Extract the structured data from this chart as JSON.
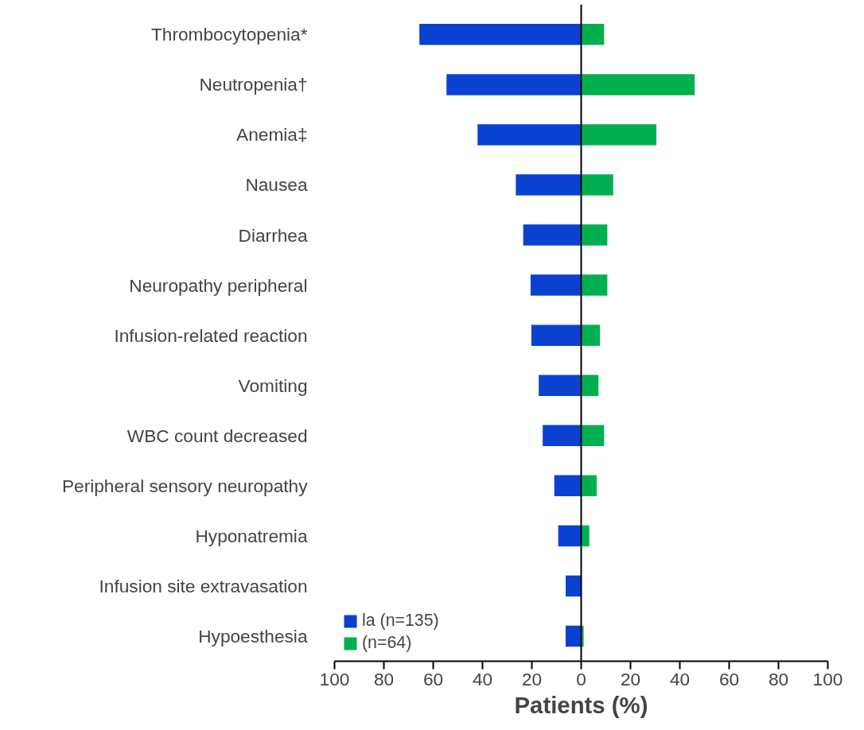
{
  "chart_data": {
    "type": "bar",
    "orientation": "horizontal",
    "xlabel": "Patients (%)",
    "categories": [
      "Thrombocytopenia*",
      "Neutropenia†",
      "Anemia‡",
      "Nausea",
      "Diarrhea",
      "Neuropathy peripheral",
      "Infusion-related reaction",
      "Vomiting",
      "WBC count decreased",
      "Peripheral sensory neuropathy",
      "Hyponatremia",
      "Infusion site extravasation",
      "Hypoesthesia"
    ],
    "series": [
      {
        "name": "la (n=135)",
        "color": "#0a41d1",
        "values": [
          -65.6,
          -54.6,
          -42,
          -26.5,
          -23.5,
          -20.5,
          -20.2,
          -17.2,
          -15.6,
          -10.9,
          -9.3,
          -6.3,
          -6.3
        ]
      },
      {
        "name": "(n=64)",
        "color": "#00b050",
        "values": [
          9.3,
          46,
          30.5,
          13,
          10.6,
          10.6,
          7.6,
          7,
          9.3,
          6.3,
          3.3,
          0,
          1
        ]
      }
    ],
    "xlim": [
      -100,
      100
    ],
    "xticks": [
      {
        "value": -100,
        "label": "100"
      },
      {
        "value": -80,
        "label": "80"
      },
      {
        "value": -60,
        "label": "60"
      },
      {
        "value": -40,
        "label": "40"
      },
      {
        "value": -20,
        "label": "20"
      },
      0,
      20,
      40,
      60,
      80,
      100
    ],
    "stacked": true,
    "ref_lines": [
      {
        "axis": "x",
        "value": 0,
        "color": "#000000"
      }
    ],
    "grid": false,
    "legend": "bottom left"
  }
}
